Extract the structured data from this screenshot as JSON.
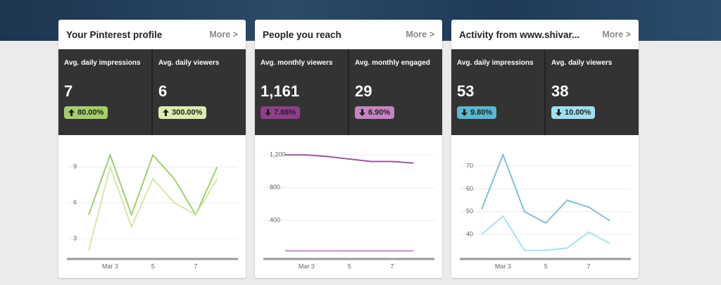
{
  "cards": [
    {
      "title": "Your Pinterest profile",
      "more": "More >",
      "stats": [
        {
          "label": "Avg. daily impressions",
          "value": "7",
          "change": "80.00%",
          "direction": "up",
          "color": "#a4cf6a"
        },
        {
          "label": "Avg. daily viewers",
          "value": "6",
          "change": "300.00%",
          "direction": "up",
          "color": "#dbecb0"
        }
      ],
      "chart": {
        "type": "line",
        "categories": [
          null,
          "Mar 3",
          null,
          "5",
          null,
          "7",
          null
        ],
        "series": [
          {
            "color": "#a5cc72",
            "values": [
              5,
              10,
              5,
              10,
              8,
              5,
              9
            ]
          },
          {
            "color": "#d6e8a8",
            "values": [
              2,
              9,
              4,
              8,
              6,
              5,
              8
            ]
          }
        ],
        "ylim": [
          1.3,
          10.9
        ],
        "yticks": [
          3,
          6,
          9
        ],
        "grid": true
      }
    },
    {
      "title": "People you reach",
      "more": "More >",
      "stats": [
        {
          "label": "Avg. monthly viewers",
          "value": "1,161",
          "change": "7.88%",
          "direction": "down",
          "color": "#8e3f8b"
        },
        {
          "label": "Avg. monthly engaged",
          "value": "29",
          "change": "6.90%",
          "direction": "down",
          "color": "#c585c1"
        }
      ],
      "chart": {
        "type": "line",
        "categories": [
          null,
          "Mar 3",
          null,
          "5",
          null,
          "7",
          null
        ],
        "series": [
          {
            "color": "#9b5a98",
            "values": [
              1200,
              1200,
              1180,
              1150,
              1120,
              1120,
              1100
            ]
          },
          {
            "color": "#c98ac2",
            "values": [
              30,
              30,
              30,
              29,
              29,
              29,
              29
            ]
          }
        ],
        "ylim": [
          -70,
          1330
        ],
        "yticks": [
          400,
          800,
          {
            "value": 1200,
            "label": "1,200"
          }
        ],
        "grid": true
      }
    },
    {
      "title": "Activity from www.shivar...",
      "more": "More >",
      "stats": [
        {
          "label": "Avg. daily impressions",
          "value": "53",
          "change": "9.80%",
          "direction": "down",
          "color": "#5ab8cf"
        },
        {
          "label": "Avg. daily viewers",
          "value": "38",
          "change": "10.00%",
          "direction": "down",
          "color": "#9ee0ef"
        }
      ],
      "chart": {
        "type": "line",
        "categories": [
          null,
          "Mar 3",
          null,
          "5",
          null,
          "7",
          null
        ],
        "series": [
          {
            "color": "#7ec3d3",
            "values": [
              51,
              75,
              50,
              45,
              55,
              52,
              46
            ]
          },
          {
            "color": "#a9e2ef",
            "values": [
              40,
              48,
              33,
              33,
              34,
              41,
              36
            ]
          }
        ],
        "ylim": [
          29.2,
          79.6
        ],
        "yticks": [
          40,
          50,
          60,
          70
        ],
        "grid": true
      }
    }
  ]
}
